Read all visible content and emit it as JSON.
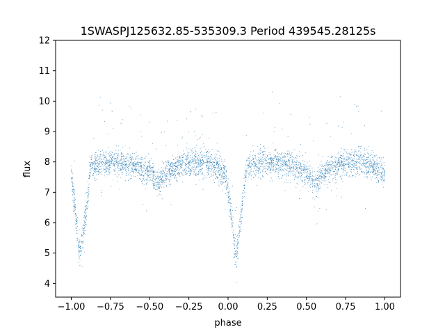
{
  "chart_data": {
    "type": "scatter",
    "title": "1SWASPJ125632.85-535309.3 Period 439545.28125s",
    "xlabel": "phase",
    "ylabel": "flux",
    "xlim": [
      -1.1,
      1.1
    ],
    "ylim": [
      3.55,
      12.0
    ],
    "xticks": [
      -1.0,
      -0.75,
      -0.5,
      -0.25,
      0.0,
      0.25,
      0.5,
      0.75,
      1.0
    ],
    "xtick_labels": [
      "−1.00",
      "−0.75",
      "−0.50",
      "−0.25",
      "0.00",
      "0.25",
      "0.50",
      "0.75",
      "1.00"
    ],
    "yticks": [
      4,
      5,
      6,
      7,
      8,
      9,
      10,
      11,
      12
    ],
    "ytick_labels": [
      "4",
      "5",
      "6",
      "7",
      "8",
      "9",
      "10",
      "11",
      "12"
    ],
    "grid": false,
    "marker_color": "#1f77b4",
    "light_curve": {
      "phase": [
        -1.0,
        -0.97,
        -0.95,
        -0.93,
        -0.9,
        -0.88,
        -0.8,
        -0.7,
        -0.6,
        -0.5,
        -0.46,
        -0.44,
        -0.4,
        -0.3,
        -0.2,
        -0.1,
        -0.02,
        0.0,
        0.03,
        0.05,
        0.07,
        0.1,
        0.12,
        0.2,
        0.3,
        0.4,
        0.5,
        0.54,
        0.56,
        0.6,
        0.7,
        0.8,
        0.9,
        1.0
      ],
      "flux": [
        7.6,
        6.2,
        5.0,
        5.4,
        6.6,
        7.8,
        7.95,
        8.0,
        7.9,
        7.65,
        7.4,
        7.25,
        7.6,
        7.9,
        8.0,
        7.9,
        7.6,
        7.1,
        5.8,
        4.8,
        5.6,
        7.0,
        7.8,
        7.95,
        8.0,
        7.9,
        7.65,
        7.4,
        7.25,
        7.6,
        7.9,
        8.0,
        7.9,
        7.6
      ]
    }
  }
}
